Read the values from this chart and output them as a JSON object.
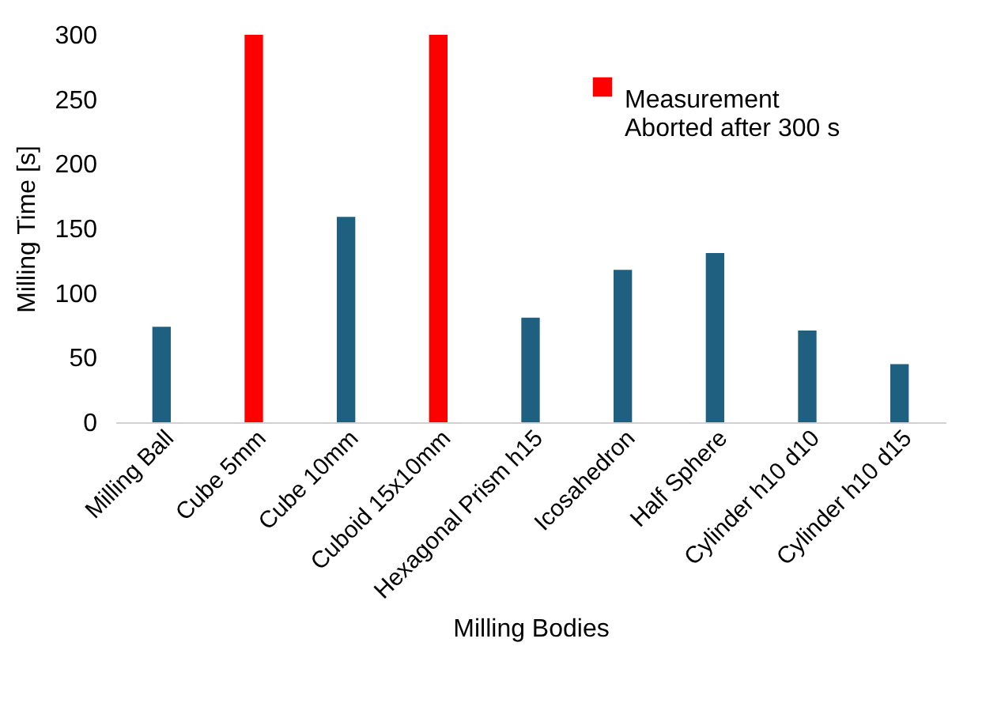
{
  "chart_data": {
    "type": "bar",
    "xlabel": "Milling Bodies",
    "ylabel": "Milling Time [s]",
    "categories": [
      "Milling Ball",
      "Cube 5mm",
      "Cube 10mm",
      "Cuboid 15x10mm",
      "Hexagonal Prism h15",
      "Icosahedron",
      "Half Sphere",
      "Cylinder h10 d10",
      "Cylinder h10 d15"
    ],
    "series": [
      {
        "color": "#1f5f7f",
        "values": [
          74,
          null,
          159,
          null,
          81,
          118,
          131,
          71,
          45
        ]
      },
      {
        "name": "Measurement Aborted after 300 s",
        "color": "#ff0000",
        "values": [
          null,
          300,
          null,
          300,
          null,
          null,
          null,
          null,
          null
        ]
      }
    ],
    "ylim": [
      0,
      300
    ],
    "yticks": [
      0,
      50,
      100,
      150,
      200,
      250,
      300
    ],
    "grid": false,
    "legend": "top right"
  }
}
